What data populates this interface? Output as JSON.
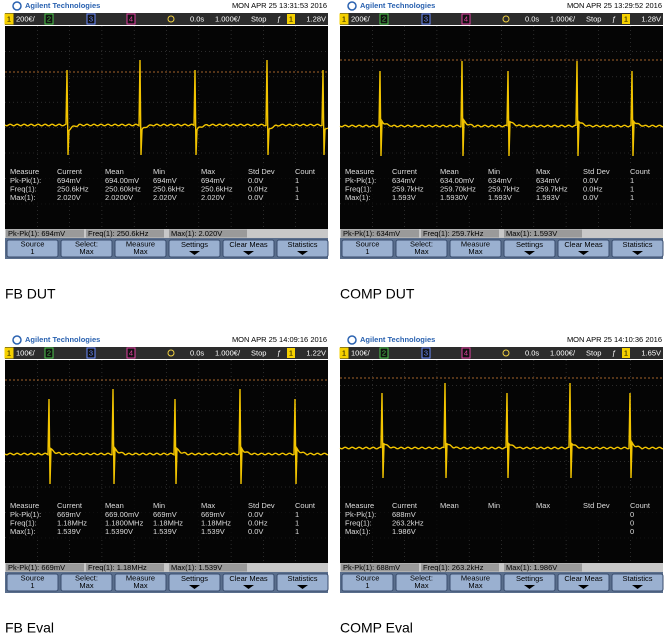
{
  "panels": [
    {
      "caption": "FB DUT",
      "header": {
        "brand": "Agilent Technologies",
        "datetime": "MON APR 25 13:31:53 2016"
      },
      "status": {
        "channels": [
          "1",
          "2",
          "3",
          "4"
        ],
        "ch1_scale": "200€/",
        "time_offset": "0.0s",
        "time_scale": "1.000€/",
        "run_state": "Stop",
        "trigger_slope": "ƒ",
        "trigger_source": "1",
        "trigger_level": "1.28V"
      },
      "table": {
        "columns": [
          "Measure",
          "Current",
          "Mean",
          "Min",
          "Max",
          "Std Dev",
          "Count"
        ],
        "rows": [
          {
            "label": "Pk-Pk(1):",
            "current": "694mV",
            "mean": "694.00mV",
            "min": "694mV",
            "max": "694mV",
            "std_dev": "0.0V",
            "count": "1"
          },
          {
            "label": "Freq(1):",
            "current": "250.6kHz",
            "mean": "250.60kHz",
            "min": "250.6kHz",
            "max": "250.6kHz",
            "std_dev": "0.0Hz",
            "count": "1"
          },
          {
            "label": "Max(1):",
            "current": "2.020V",
            "mean": "2.0200V",
            "min": "2.020V",
            "max": "2.020V",
            "std_dev": "0.0V",
            "count": "1"
          }
        ]
      },
      "info": [
        "Pk-Pk(1): 694mV",
        "Freq(1): 250.6kHz",
        "Max(1): 2.020V"
      ],
      "softkeys": [
        [
          "Source",
          "1"
        ],
        [
          "Select:",
          "Max"
        ],
        [
          "Measure",
          "Max"
        ],
        [
          "Settings"
        ],
        [
          "Clear Meas"
        ],
        [
          "Statistics"
        ]
      ]
    },
    {
      "caption": "COMP DUT",
      "header": {
        "brand": "Agilent Technologies",
        "datetime": "MON APR 25 13:29:52 2016"
      },
      "status": {
        "channels": [
          "1",
          "2",
          "3",
          "4"
        ],
        "ch1_scale": "200€/",
        "time_offset": "0.0s",
        "time_scale": "1.000€/",
        "run_state": "Stop",
        "trigger_slope": "ƒ",
        "trigger_source": "1",
        "trigger_level": "1.28V"
      },
      "table": {
        "columns": [
          "Measure",
          "Current",
          "Mean",
          "Min",
          "Max",
          "Std Dev",
          "Count"
        ],
        "rows": [
          {
            "label": "Pk-Pk(1):",
            "current": "634mV",
            "mean": "634.00mV",
            "min": "634mV",
            "max": "634mV",
            "std_dev": "0.0V",
            "count": "1"
          },
          {
            "label": "Freq(1):",
            "current": "259.7kHz",
            "mean": "259.70kHz",
            "min": "259.7kHz",
            "max": "259.7kHz",
            "std_dev": "0.0Hz",
            "count": "1"
          },
          {
            "label": "Max(1):",
            "current": "1.593V",
            "mean": "1.5930V",
            "min": "1.593V",
            "max": "1.593V",
            "std_dev": "0.0V",
            "count": "1"
          }
        ]
      },
      "info": [
        "Pk-Pk(1): 634mV",
        "Freq(1): 259.7kHz",
        "Max(1): 1.593V"
      ],
      "softkeys": [
        [
          "Source",
          "1"
        ],
        [
          "Select:",
          "Max"
        ],
        [
          "Measure",
          "Max"
        ],
        [
          "Settings"
        ],
        [
          "Clear Meas"
        ],
        [
          "Statistics"
        ]
      ]
    },
    {
      "caption": "FB Eval",
      "header": {
        "brand": "Agilent Technologies",
        "datetime": "MON APR 25 14:09:16 2016"
      },
      "status": {
        "channels": [
          "1",
          "2",
          "3",
          "4"
        ],
        "ch1_scale": "100€/",
        "time_offset": "0.0s",
        "time_scale": "1.000€/",
        "run_state": "Stop",
        "trigger_slope": "ƒ",
        "trigger_source": "1",
        "trigger_level": "1.22V"
      },
      "table": {
        "columns": [
          "Measure",
          "Current",
          "Mean",
          "Min",
          "Max",
          "Std Dev",
          "Count"
        ],
        "rows": [
          {
            "label": "Pk-Pk(1):",
            "current": "669mV",
            "mean": "669.00mV",
            "min": "669mV",
            "max": "669mV",
            "std_dev": "0.0V",
            "count": "1"
          },
          {
            "label": "Freq(1):",
            "current": "1.18MHz",
            "mean": "1.1800MHz",
            "min": "1.18MHz",
            "max": "1.18MHz",
            "std_dev": "0.0Hz",
            "count": "1"
          },
          {
            "label": "Max(1):",
            "current": "1.539V",
            "mean": "1.5390V",
            "min": "1.539V",
            "max": "1.539V",
            "std_dev": "0.0V",
            "count": "1"
          }
        ]
      },
      "info": [
        "Pk-Pk(1): 669mV",
        "Freq(1): 1.18MHz",
        "Max(1): 1.539V"
      ],
      "softkeys": [
        [
          "Source",
          "1"
        ],
        [
          "Select:",
          "Max"
        ],
        [
          "Measure",
          "Max"
        ],
        [
          "Settings"
        ],
        [
          "Clear Meas"
        ],
        [
          "Statistics"
        ]
      ]
    },
    {
      "caption": "COMP Eval",
      "header": {
        "brand": "Agilent Technologies",
        "datetime": "MON APR 25 14:10:36 2016"
      },
      "status": {
        "channels": [
          "1",
          "2",
          "3",
          "4"
        ],
        "ch1_scale": "100€/",
        "time_offset": "0.0s",
        "time_scale": "1.000€/",
        "run_state": "Stop",
        "trigger_slope": "ƒ",
        "trigger_source": "1",
        "trigger_level": "1.65V"
      },
      "table": {
        "columns": [
          "Measure",
          "Current",
          "Mean",
          "Min",
          "Max",
          "Std Dev",
          "Count"
        ],
        "rows": [
          {
            "label": "Pk-Pk(1):",
            "current": "688mV",
            "count": "0"
          },
          {
            "label": "Freq(1):",
            "current": "263.2kHz",
            "count": "0"
          },
          {
            "label": "Max(1):",
            "current": "1.986V",
            "count": "0"
          }
        ]
      },
      "info": [
        "Pk-Pk(1): 688mV",
        "Freq(1): 263.2kHz",
        "Max(1): 1.986V"
      ],
      "softkeys": [
        [
          "Source",
          "1"
        ],
        [
          "Select:",
          "Max"
        ],
        [
          "Measure",
          "Max"
        ],
        [
          "Settings"
        ],
        [
          "Clear Meas"
        ],
        [
          "Statistics"
        ]
      ]
    }
  ]
}
